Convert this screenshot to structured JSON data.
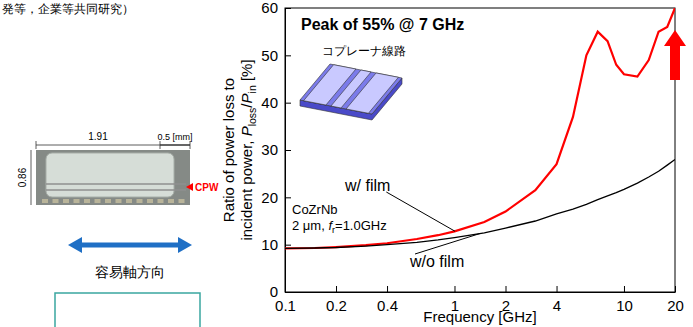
{
  "header_fragment": "発等，企業等共同研究）",
  "photo": {
    "width_label": "1.91",
    "scale_label": "0.5 [mm]",
    "height_label": "0.86",
    "marker_label": "CPW"
  },
  "easy_axis_label": "容易軸方向",
  "chart_data": {
    "type": "line",
    "title": "Peak of 55% @ 7 GHz",
    "x_label": "Frequency [GHz]",
    "y_label": [
      [
        {
          "text": "Ratio of power loss to"
        }
      ],
      [
        {
          "text": "incident power, "
        },
        {
          "text": "P",
          "italic": true
        },
        {
          "text": "loss",
          "sub": true
        },
        {
          "text": "/"
        },
        {
          "text": "P",
          "italic": true
        },
        {
          "text": "in",
          "sub": true
        },
        {
          "text": " [%]"
        }
      ]
    ],
    "log": "x",
    "grid": false,
    "xlim": [
      0.1,
      20
    ],
    "xticks": [
      0.1,
      0.2,
      0.4,
      1,
      2,
      4,
      10,
      20
    ],
    "ylim": [
      0,
      60
    ],
    "yticks": [
      0,
      10,
      20,
      30,
      40,
      50,
      60
    ],
    "x": [
      0.1,
      0.15,
      0.2,
      0.3,
      0.4,
      0.6,
      0.8,
      1,
      1.5,
      2,
      3,
      4,
      5,
      6,
      7,
      8,
      9,
      10,
      12,
      14,
      16,
      18,
      20
    ],
    "series": [
      {
        "name": "w/ film",
        "color": "#ff0000",
        "values": [
          9.2,
          9.3,
          9.5,
          9.9,
          10.3,
          11.2,
          12,
          12.8,
          14.8,
          17,
          21.5,
          27,
          37,
          50,
          55,
          53,
          48,
          46,
          45.5,
          49,
          55,
          56,
          60
        ]
      },
      {
        "name": "w/o film",
        "color": "#000000",
        "values": [
          9.2,
          9.3,
          9.4,
          9.7,
          10,
          10.5,
          11,
          11.5,
          12.5,
          13.5,
          15,
          16.5,
          17.5,
          18.5,
          19.5,
          20.3,
          21,
          21.7,
          23,
          24.3,
          25.5,
          26.8,
          28
        ]
      }
    ],
    "annotations": [
      {
        "lines": [
          [
            {
              "text": "コプレーナ線路"
            }
          ]
        ]
      },
      {
        "lines": [
          [
            {
              "text": "CoZrNb"
            }
          ],
          [
            {
              "text": "2 μm, "
            },
            {
              "text": "f",
              "italic": true
            },
            {
              "text": "r",
              "sub": true
            },
            {
              "text": "=1.0GHz"
            }
          ]
        ]
      }
    ]
  }
}
